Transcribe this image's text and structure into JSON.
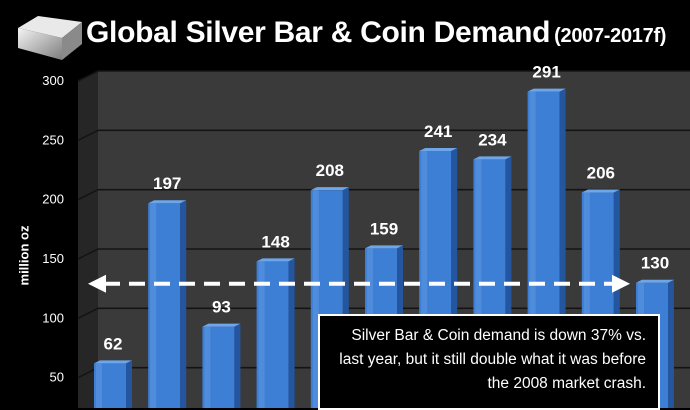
{
  "chart_data": {
    "type": "bar",
    "title": "Global Silver Bar & Coin Demand",
    "subtitle": "(2007-2017f)",
    "ylabel": "million oz",
    "ylim": [
      0,
      300
    ],
    "yticks": [
      50,
      100,
      150,
      200,
      250,
      300
    ],
    "values": [
      62,
      197,
      93,
      148,
      208,
      159,
      241,
      234,
      291,
      206,
      130
    ],
    "data_labels": [
      "62",
      "197",
      "93",
      "148",
      "208",
      "159",
      "241",
      "234",
      "291",
      "206",
      "130"
    ],
    "grid": true,
    "annotation": "Silver Bar & Coin demand is down 37% vs. last year, but it still double what it was before the 2008 market crash.",
    "colors": {
      "bar": "#3d7fd4",
      "bar_top": "#6fa6ea",
      "bar_side": "#2456a0",
      "wall": "#3a3a3a",
      "floor": "#2c2c2c"
    }
  }
}
